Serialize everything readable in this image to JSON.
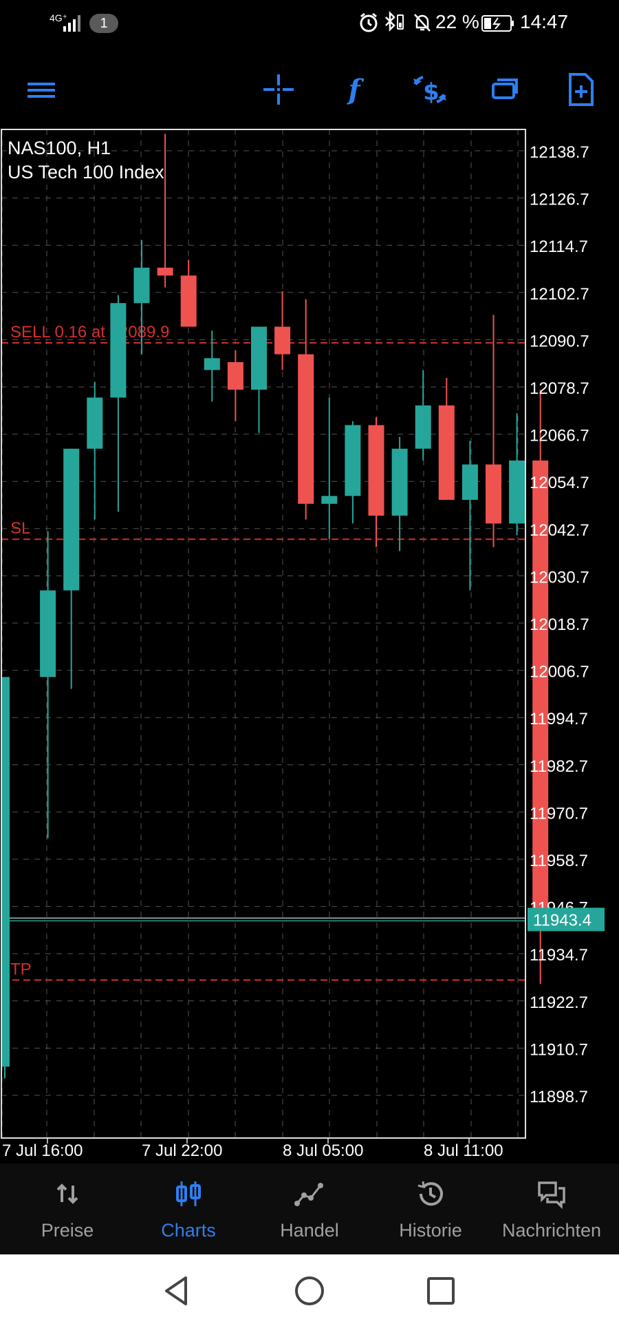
{
  "status_bar": {
    "network": "4G⁺",
    "notification_count": "1",
    "battery_percent": "22 %",
    "time": "14:47"
  },
  "toolbar": {
    "icons": [
      "menu-icon",
      "crosshair-icon",
      "indicators-icon",
      "trade-icon",
      "timeframe-icon",
      "new-order-icon"
    ],
    "accent_color": "#2d7ff0"
  },
  "chart": {
    "symbol_line": "NAS100, H1",
    "name_line": "US Tech 100 Index",
    "bull_color": "#26a69a",
    "bear_color": "#ef5350",
    "order_color": "#d32f2f"
  },
  "chart_data": {
    "type": "candlestick",
    "x_tick_labels": [
      "7 Jul 16:00",
      "7 Jul 22:00",
      "8 Jul 05:00",
      "8 Jul 11:00"
    ],
    "y_tick_labels": [
      "12138.7",
      "12126.7",
      "12114.7",
      "12102.7",
      "12090.7",
      "12078.7",
      "12066.7",
      "12054.7",
      "12042.7",
      "12030.7",
      "12018.7",
      "12006.7",
      "11994.7",
      "11982.7",
      "11970.7",
      "11958.7",
      "11946.7",
      "11934.7",
      "11922.7",
      "11910.7",
      "11898.7"
    ],
    "ylim": [
      11891.2,
      12146.2
    ],
    "current_price": "11943.4",
    "current_price_value": 11943.4,
    "order_lines": [
      {
        "label": "SELL 0.16 at 12089.9",
        "price": 12089.9
      },
      {
        "label": "SL",
        "price": 12040.0
      },
      {
        "label": "TP",
        "price": 11928.0
      }
    ],
    "candles": [
      {
        "o": 11906,
        "h": 12005,
        "l": 11903,
        "c": 12005
      },
      {
        "o": 12005,
        "h": 12042,
        "l": 11964,
        "c": 12027
      },
      {
        "o": 12027,
        "h": 12063,
        "l": 12002,
        "c": 12063
      },
      {
        "o": 12063,
        "h": 12080,
        "l": 12045,
        "c": 12076
      },
      {
        "o": 12076,
        "h": 12102,
        "l": 12047,
        "c": 12100
      },
      {
        "o": 12100,
        "h": 12116,
        "l": 12087,
        "c": 12109
      },
      {
        "o": 12109,
        "h": 12143,
        "l": 12104,
        "c": 12107
      },
      {
        "o": 12107,
        "h": 12111,
        "l": 12094,
        "c": 12094
      },
      {
        "o": 12083,
        "h": 12093,
        "l": 12075,
        "c": 12086
      },
      {
        "o": 12085,
        "h": 12088,
        "l": 12070,
        "c": 12078
      },
      {
        "o": 12078,
        "h": 12094,
        "l": 12067,
        "c": 12094
      },
      {
        "o": 12094,
        "h": 12103,
        "l": 12083,
        "c": 12087
      },
      {
        "o": 12087,
        "h": 12101,
        "l": 12045,
        "c": 12049
      },
      {
        "o": 12049,
        "h": 12076,
        "l": 12040,
        "c": 12051
      },
      {
        "o": 12051,
        "h": 12070,
        "l": 12044,
        "c": 12069
      },
      {
        "o": 12069,
        "h": 12071,
        "l": 12038,
        "c": 12046
      },
      {
        "o": 12046,
        "h": 12066,
        "l": 12037,
        "c": 12063
      },
      {
        "o": 12063,
        "h": 12083,
        "l": 12060,
        "c": 12074
      },
      {
        "o": 12074,
        "h": 12081,
        "l": 12050,
        "c": 12050
      },
      {
        "o": 12050,
        "h": 12065,
        "l": 12027,
        "c": 12059
      },
      {
        "o": 12059,
        "h": 12097,
        "l": 12038,
        "c": 12044
      },
      {
        "o": 12044,
        "h": 12072,
        "l": 12041,
        "c": 12060
      },
      {
        "o": 12060,
        "h": 12078,
        "l": 11927,
        "c": 11943.4
      }
    ]
  },
  "bottom_nav": [
    {
      "label": "Preise",
      "icon": "quotes-arrows-icon",
      "active": false
    },
    {
      "label": "Charts",
      "icon": "candles-icon",
      "active": true
    },
    {
      "label": "Handel",
      "icon": "trade-line-icon",
      "active": false
    },
    {
      "label": "Historie",
      "icon": "history-icon",
      "active": false
    },
    {
      "label": "Nachrichten",
      "icon": "messages-icon",
      "active": false
    }
  ],
  "system_nav": [
    "back-icon",
    "home-icon",
    "recents-icon"
  ]
}
